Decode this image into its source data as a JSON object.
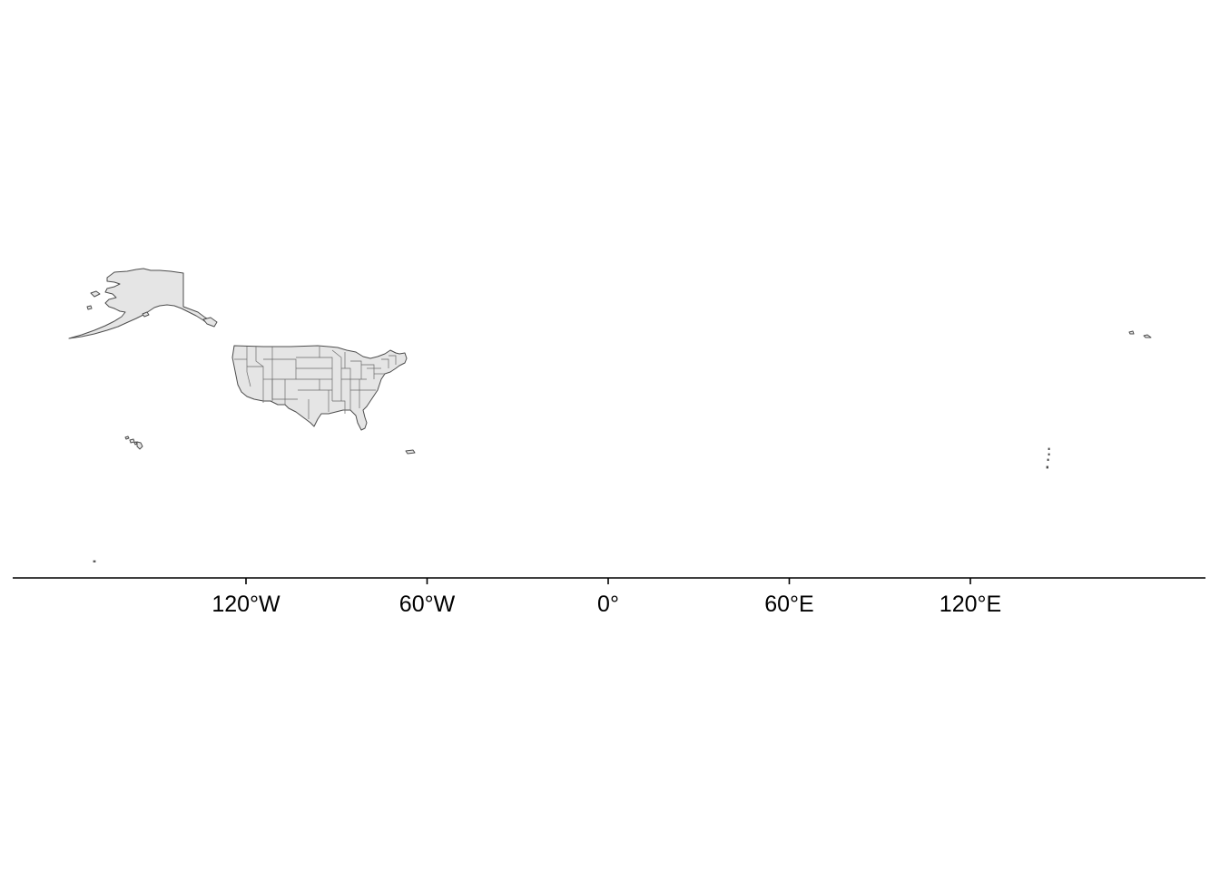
{
  "map": {
    "regions": [
      "Alaska",
      "Contiguous United States",
      "Hawaii",
      "Puerto Rico",
      "Guam and Northern Mariana Islands",
      "American Samoa"
    ],
    "land_fill": "#e5e5e5",
    "border_color": "#4d4d4d",
    "background": "#ffffff",
    "grid": false
  },
  "x_axis": {
    "ticks": [
      {
        "lon": -120,
        "label": "120°W"
      },
      {
        "lon": -60,
        "label": "60°W"
      },
      {
        "lon": 0,
        "label": "0°"
      },
      {
        "lon": 60,
        "label": "60°E"
      },
      {
        "lon": 120,
        "label": "120°E"
      }
    ],
    "color": "#000000"
  }
}
